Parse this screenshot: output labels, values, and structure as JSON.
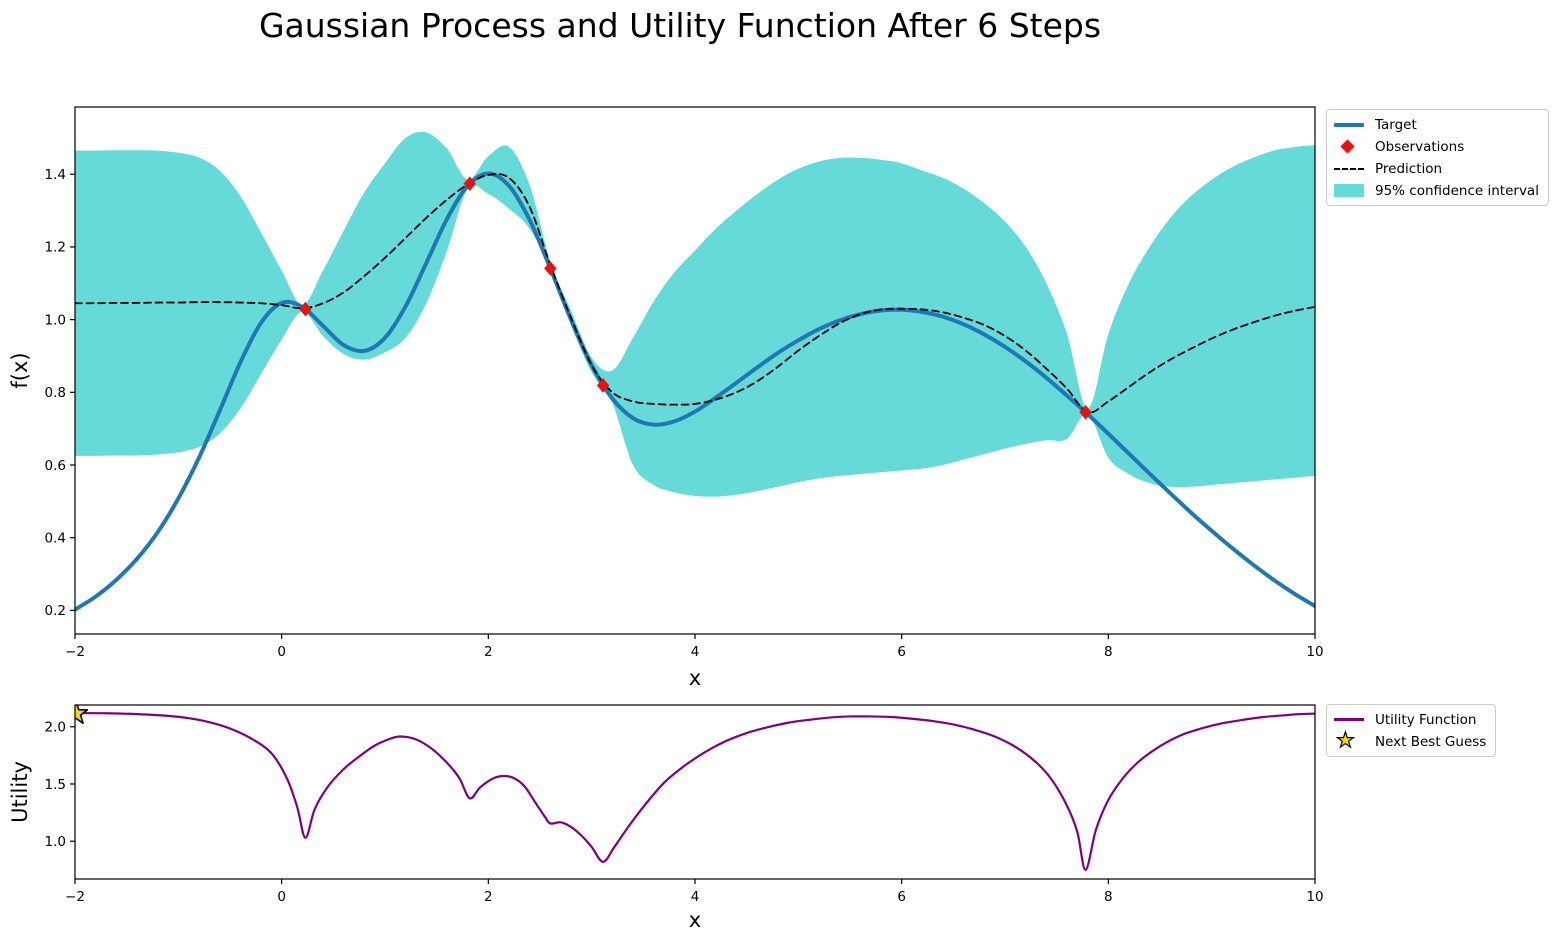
{
  "title": "Gaussian Process and Utility Function After 6 Steps",
  "colors": {
    "target": "#1f77b4",
    "observations": "#e51414",
    "prediction": "#000000",
    "confidence": "#66d9d9",
    "utility": "#800080",
    "star_fill": "#ffd700",
    "star_edge": "#000000",
    "axes": "#000000"
  },
  "icons": {
    "star_glyph": "★"
  },
  "chart_data": [
    {
      "type": "line",
      "panel": "gaussian-process",
      "xlabel": "x",
      "ylabel": "f(x)",
      "xlim": [
        -2,
        10
      ],
      "ylim": [
        0.135,
        1.585
      ],
      "xticks": [
        -2,
        0,
        2,
        4,
        6,
        8,
        10
      ],
      "xticklabels": [
        "−2",
        "0",
        "2",
        "4",
        "6",
        "8",
        "10"
      ],
      "yticks": [
        0.2,
        0.4,
        0.6,
        0.8,
        1.0,
        1.2,
        1.4
      ],
      "yticklabels": [
        "0.2",
        "0.4",
        "0.6",
        "0.8",
        "1.0",
        "1.2",
        "1.4"
      ],
      "grid": false,
      "legend_position": "outside-upper-right",
      "x": [
        -2.0,
        -1.8,
        -1.6,
        -1.4,
        -1.2,
        -1.0,
        -0.8,
        -0.6,
        -0.4,
        -0.2,
        0.0,
        0.2,
        0.4,
        0.6,
        0.8,
        1.0,
        1.2,
        1.4,
        1.6,
        1.8,
        2.0,
        2.2,
        2.4,
        2.6,
        2.8,
        3.0,
        3.2,
        3.4,
        3.6,
        3.8,
        4.0,
        4.2,
        4.4,
        4.6,
        4.8,
        5.0,
        5.2,
        5.4,
        5.6,
        5.8,
        6.0,
        6.2,
        6.4,
        6.6,
        6.8,
        7.0,
        7.2,
        7.4,
        7.6,
        7.8,
        8.0,
        8.2,
        8.4,
        8.6,
        8.8,
        9.0,
        9.2,
        9.4,
        9.6,
        9.8,
        10.0
      ],
      "series": [
        {
          "name": "95% confidence interval",
          "kind": "band",
          "color": "#66d9d9",
          "upper": [
            1.465,
            1.465,
            1.466,
            1.466,
            1.465,
            1.459,
            1.446,
            1.41,
            1.34,
            1.24,
            1.135,
            1.04,
            1.135,
            1.245,
            1.35,
            1.43,
            1.5,
            1.515,
            1.47,
            1.385,
            1.45,
            1.475,
            1.37,
            1.16,
            1.025,
            0.895,
            0.86,
            0.95,
            1.05,
            1.13,
            1.19,
            1.25,
            1.3,
            1.345,
            1.385,
            1.415,
            1.435,
            1.445,
            1.445,
            1.44,
            1.43,
            1.41,
            1.39,
            1.36,
            1.32,
            1.27,
            1.2,
            1.1,
            0.96,
            0.755,
            0.96,
            1.1,
            1.2,
            1.28,
            1.34,
            1.385,
            1.42,
            1.445,
            1.465,
            1.475,
            1.48
          ],
          "lower": [
            0.625,
            0.625,
            0.626,
            0.626,
            0.629,
            0.635,
            0.65,
            0.686,
            0.755,
            0.85,
            0.945,
            1.022,
            0.955,
            0.905,
            0.89,
            0.91,
            0.95,
            1.045,
            1.19,
            1.36,
            1.346,
            1.305,
            1.25,
            1.14,
            0.985,
            0.855,
            0.77,
            0.6,
            0.545,
            0.525,
            0.515,
            0.513,
            0.518,
            0.528,
            0.54,
            0.553,
            0.563,
            0.57,
            0.575,
            0.58,
            0.585,
            0.59,
            0.6,
            0.615,
            0.63,
            0.645,
            0.658,
            0.668,
            0.672,
            0.74,
            0.62,
            0.575,
            0.55,
            0.54,
            0.54,
            0.545,
            0.55,
            0.555,
            0.56,
            0.565,
            0.57
          ]
        },
        {
          "name": "Target",
          "kind": "line",
          "color": "#1f77b4",
          "y": [
            0.202,
            0.238,
            0.284,
            0.342,
            0.415,
            0.508,
            0.62,
            0.749,
            0.882,
            0.991,
            1.046,
            1.035,
            0.983,
            0.93,
            0.914,
            0.95,
            1.037,
            1.156,
            1.277,
            1.368,
            1.402,
            1.368,
            1.274,
            1.141,
            1.0,
            0.874,
            0.783,
            0.729,
            0.711,
            0.72,
            0.747,
            0.785,
            0.826,
            0.868,
            0.908,
            0.943,
            0.974,
            0.998,
            1.015,
            1.025,
            1.027,
            1.021,
            1.008,
            0.987,
            0.959,
            0.925,
            0.885,
            0.84,
            0.791,
            0.74,
            0.686,
            0.631,
            0.576,
            0.522,
            0.469,
            0.419,
            0.371,
            0.326,
            0.284,
            0.246,
            0.212
          ]
        },
        {
          "name": "Prediction",
          "kind": "dashed-line",
          "color": "#000000",
          "y": [
            1.045,
            1.045,
            1.046,
            1.046,
            1.047,
            1.047,
            1.048,
            1.048,
            1.047,
            1.045,
            1.04,
            1.031,
            1.045,
            1.075,
            1.12,
            1.17,
            1.225,
            1.28,
            1.33,
            1.372,
            1.398,
            1.39,
            1.31,
            1.15,
            1.005,
            0.875,
            0.8,
            0.775,
            0.768,
            0.766,
            0.768,
            0.78,
            0.8,
            0.83,
            0.87,
            0.915,
            0.955,
            0.99,
            1.015,
            1.028,
            1.03,
            1.028,
            1.02,
            1.005,
            0.985,
            0.955,
            0.915,
            0.865,
            0.81,
            0.745,
            0.775,
            0.815,
            0.855,
            0.89,
            0.92,
            0.948,
            0.972,
            0.992,
            1.01,
            1.024,
            1.035
          ]
        },
        {
          "name": "Observations",
          "kind": "scatter-diamond",
          "color": "#e51414",
          "points_x": [
            0.23,
            1.82,
            2.6,
            3.11,
            7.78
          ],
          "points_y": [
            1.029,
            1.374,
            1.141,
            0.819,
            0.745
          ]
        }
      ]
    },
    {
      "type": "line",
      "panel": "utility",
      "xlabel": "x",
      "ylabel": "Utility",
      "xlim": [
        -2,
        10
      ],
      "ylim": [
        0.67,
        2.19
      ],
      "xticks": [
        -2,
        0,
        2,
        4,
        6,
        8,
        10
      ],
      "xticklabels": [
        "−2",
        "0",
        "2",
        "4",
        "6",
        "8",
        "10"
      ],
      "yticks": [
        1.0,
        1.5,
        2.0
      ],
      "yticklabels": [
        "1.0",
        "1.5",
        "2.0"
      ],
      "grid": false,
      "legend_position": "outside-upper-right",
      "series": [
        {
          "name": "Utility Function",
          "kind": "line",
          "color": "#800080",
          "x": [
            -2.0,
            -1.7,
            -1.4,
            -1.1,
            -0.9,
            -0.7,
            -0.5,
            -0.3,
            -0.1,
            0.05,
            0.15,
            0.23,
            0.32,
            0.45,
            0.6,
            0.75,
            0.9,
            1.05,
            1.15,
            1.3,
            1.45,
            1.6,
            1.72,
            1.82,
            1.92,
            2.05,
            2.15,
            2.25,
            2.35,
            2.45,
            2.55,
            2.6,
            2.7,
            2.8,
            2.9,
            3.0,
            3.11,
            3.22,
            3.35,
            3.5,
            3.7,
            3.9,
            4.1,
            4.3,
            4.5,
            4.7,
            4.9,
            5.1,
            5.3,
            5.5,
            5.7,
            5.9,
            6.1,
            6.3,
            6.5,
            6.7,
            6.9,
            7.1,
            7.3,
            7.45,
            7.6,
            7.7,
            7.78,
            7.88,
            8.0,
            8.15,
            8.3,
            8.5,
            8.7,
            8.9,
            9.1,
            9.3,
            9.5,
            9.7,
            9.85,
            10.0
          ],
          "y": [
            2.12,
            2.118,
            2.11,
            2.095,
            2.075,
            2.04,
            1.985,
            1.9,
            1.77,
            1.55,
            1.3,
            1.03,
            1.28,
            1.48,
            1.63,
            1.74,
            1.835,
            1.895,
            1.915,
            1.89,
            1.81,
            1.685,
            1.55,
            1.375,
            1.47,
            1.55,
            1.57,
            1.55,
            1.48,
            1.345,
            1.21,
            1.155,
            1.165,
            1.125,
            1.05,
            0.95,
            0.82,
            0.95,
            1.12,
            1.3,
            1.51,
            1.66,
            1.78,
            1.875,
            1.945,
            1.995,
            2.035,
            2.06,
            2.08,
            2.09,
            2.09,
            2.085,
            2.07,
            2.05,
            2.02,
            1.975,
            1.915,
            1.825,
            1.69,
            1.54,
            1.31,
            1.08,
            0.75,
            1.1,
            1.36,
            1.56,
            1.7,
            1.83,
            1.925,
            1.985,
            2.03,
            2.06,
            2.085,
            2.1,
            2.11,
            2.115
          ]
        },
        {
          "name": "Next Best Guess",
          "kind": "scatter-star",
          "color": "#ffd700",
          "points_x": [
            -2
          ],
          "points_y": [
            2.115
          ]
        }
      ]
    }
  ]
}
